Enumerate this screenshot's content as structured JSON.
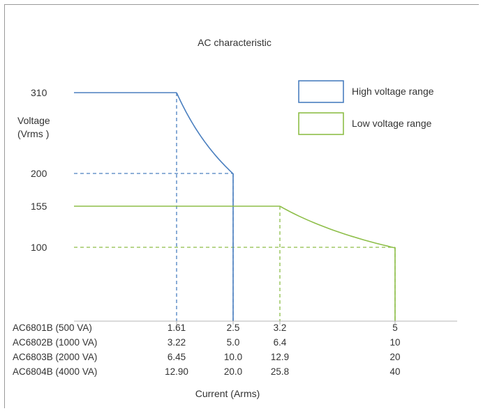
{
  "chart_data": {
    "type": "line",
    "title": "AC characteristic",
    "ylabel_line1": "Voltage",
    "ylabel_line2": "(Vrms )",
    "xlabel": "Current (Arms)",
    "y_ticks": [
      {
        "label": "310",
        "value": 310
      },
      {
        "label": "200",
        "value": 200
      },
      {
        "label": "155",
        "value": 155
      },
      {
        "label": "100",
        "value": 100
      }
    ],
    "x_ref_ticks": [
      1.61,
      2.5,
      3.2,
      5
    ],
    "x_rows": [
      {
        "model": "AC6801B (500 VA)",
        "ticks": [
          "1.61",
          "2.5",
          "3.2",
          "5"
        ]
      },
      {
        "model": "AC6802B (1000 VA)",
        "ticks": [
          "3.22",
          "5.0",
          "6.4",
          "10"
        ]
      },
      {
        "model": "AC6803B (2000 VA)",
        "ticks": [
          "6.45",
          "10.0",
          "12.9",
          "20"
        ]
      },
      {
        "model": "AC6804B (4000 VA)",
        "ticks": [
          "12.90",
          "20.0",
          "25.8",
          "40"
        ]
      }
    ],
    "series": [
      {
        "name": "High voltage range",
        "color": "#4a7fbf",
        "constant_v_until": 1.61,
        "points": [
          [
            0,
            310
          ],
          [
            1.61,
            310
          ],
          [
            2.5,
            200
          ],
          [
            2.5,
            0
          ]
        ],
        "guides": [
          [
            1.61,
            310
          ],
          [
            2.5,
            200
          ]
        ]
      },
      {
        "name": "Low voltage range",
        "color": "#8dbe48",
        "constant_v_until": 3.2,
        "points": [
          [
            0,
            155
          ],
          [
            3.2,
            155
          ],
          [
            5,
            100
          ],
          [
            5,
            0
          ]
        ],
        "guides": [
          [
            3.2,
            155
          ],
          [
            5,
            100
          ]
        ]
      }
    ],
    "legend_position": "top-right",
    "grid": false
  }
}
